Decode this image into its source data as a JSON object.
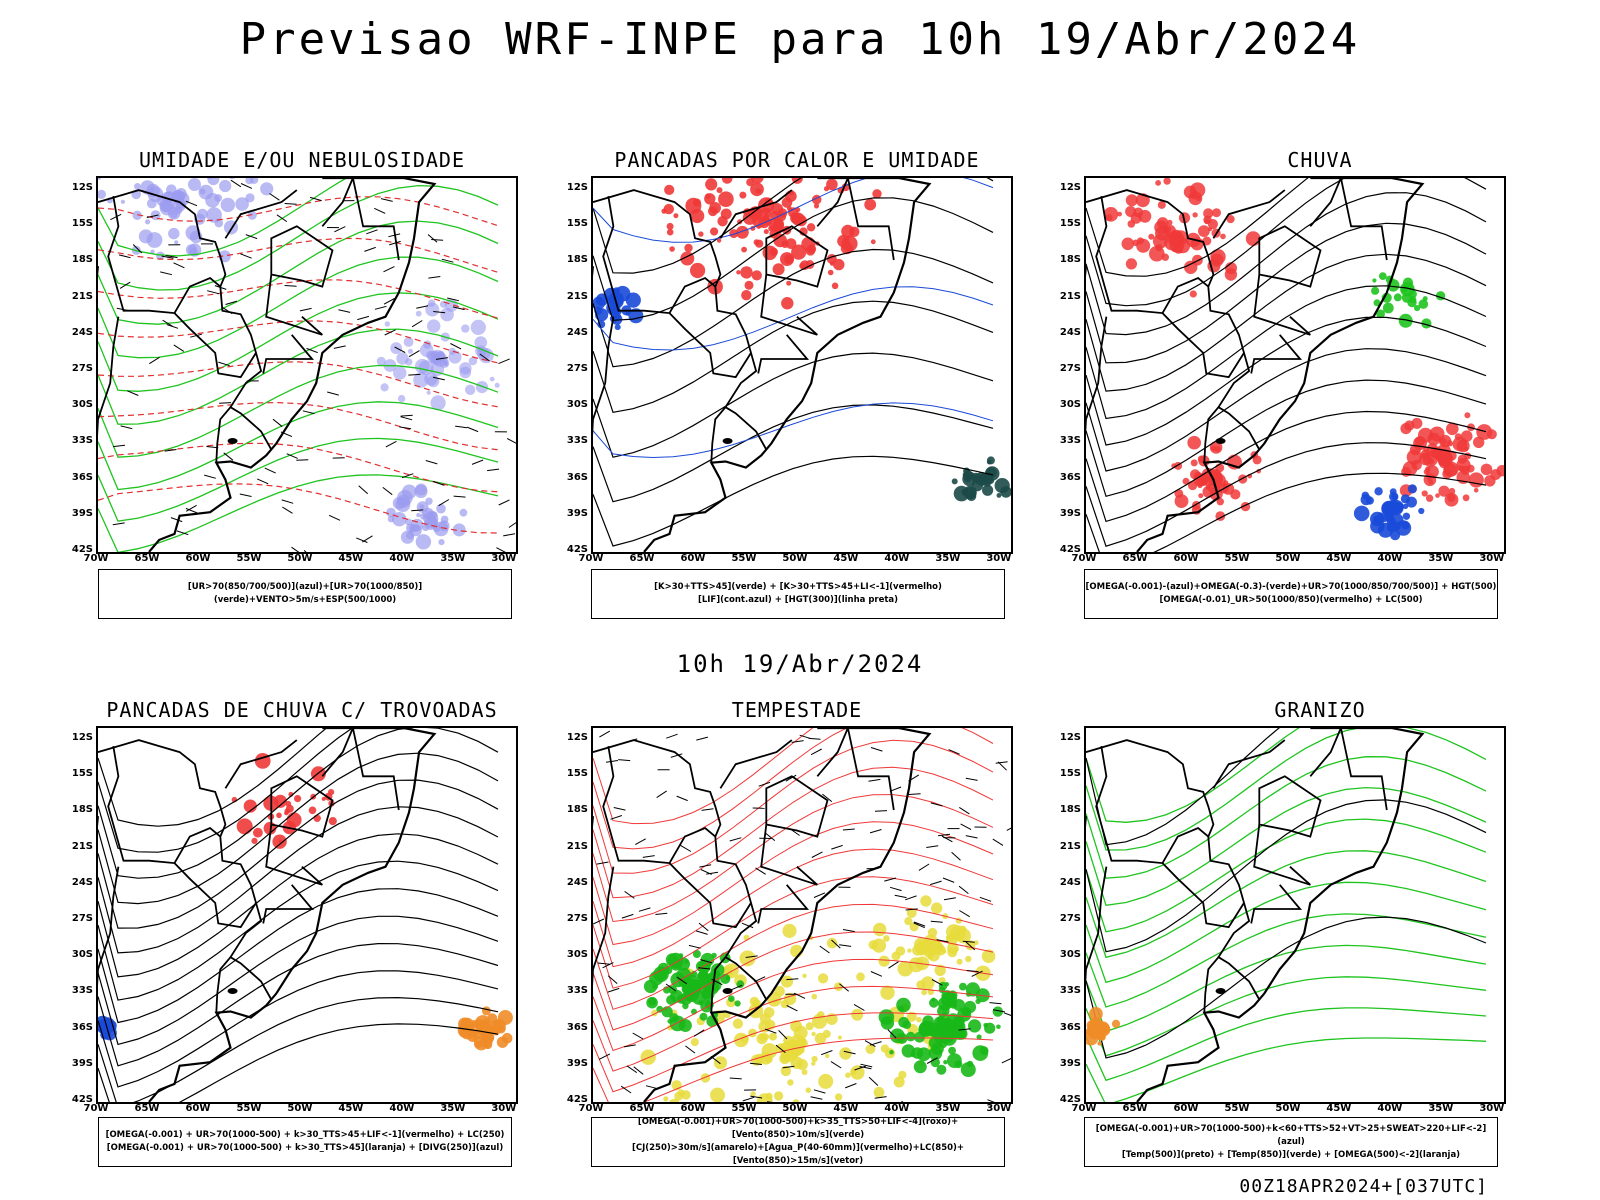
{
  "header": {
    "title": "Previsao WRF-INPE  para 10h 19/Abr/2024"
  },
  "mid_title": "10h 19/Abr/2024",
  "footer": "00Z18APR2024+[037UTC]",
  "lat_labels": [
    "12S",
    "15S",
    "18S",
    "21S",
    "24S",
    "27S",
    "30S",
    "33S",
    "36S",
    "39S",
    "42S"
  ],
  "lon_labels": [
    "70W",
    "65W",
    "60W",
    "55W",
    "50W",
    "45W",
    "40W",
    "35W",
    "30W"
  ],
  "panels": [
    {
      "id": "umidade",
      "title": "UMIDADE E/OU NEBULOSIDADE",
      "legend": [
        "[UR>70(850/700/500)](azul)+[UR>70(1000/850)](verde)+VENTO>5m/s+ESP(500/1000)"
      ],
      "colors": {
        "fill": "#9b9bf0",
        "line": "#1fc41f",
        "dash": "#e03030"
      }
    },
    {
      "id": "pancadas",
      "title": "PANCADAS POR CALOR E UMIDADE",
      "legend": [
        "[K>30+TTS>45](verde) + [K>30+TTS>45+LI<-1](vermelho)",
        "[LIF](cont.azul) + [HGT(300)](linha preta)"
      ],
      "colors": {
        "fill": "#f03838",
        "line": "#1a4ad8",
        "fill2": "#1c4a48"
      }
    },
    {
      "id": "chuva",
      "title": "CHUVA",
      "legend": [
        "[OMEGA(-0.001)-(azul)+OMEGA(-0.3)-(verde)+UR>70(1000/850/700/500)] + HGT(500)",
        "[OMEGA(-0.01)_UR>50(1000/850)(vermelho) + LC(500)"
      ],
      "colors": {
        "fill": "#f03838",
        "line": "#1a4ad8",
        "fill2": "#1fc41f"
      }
    },
    {
      "id": "trovoadas",
      "title": "PANCADAS DE CHUVA C/ TROVOADAS",
      "legend": [
        "[OMEGA(-0.001) + UR>70(1000-500) + k>30_TTS>45+LIF<-1](vermelho) + LC(250)",
        "[OMEGA(-0.001) + UR>70(1000-500) + k>30_TTS>45](laranja) + [DIVG(250)](azul)"
      ],
      "colors": {
        "fill": "#f03838",
        "line": "#1a4ad8",
        "fill2": "#f08c28"
      }
    },
    {
      "id": "tempestade",
      "title": "TEMPESTADE",
      "legend": [
        "[OMEGA(-0.001)+UR>70(1000-500)+k>35_TTS>50+LIF<-4](roxo)+[Vento(850)>10m/s](verde)",
        "[CJ(250)>30m/s](amarelo)+[Agua_P(40-60mm)](vermelho)+LC(850)+[Vento(850)>15m/s](vetor)"
      ],
      "colors": {
        "fill": "#e8dc3c",
        "line": "#f03838",
        "fill2": "#18b818"
      }
    },
    {
      "id": "granizo",
      "title": "GRANIZO",
      "legend": [
        "[OMEGA(-0.001)+UR>70(1000-500)+k<60+TTS>52+VT>25+SWEAT>220+LIF<-2](azul)",
        "[Temp(500)](preto) + [Temp(850)](verde) + [OMEGA(500)<-2](laranja)"
      ],
      "colors": {
        "fill": "#f08c28",
        "line": "#1fc41f",
        "fill2": "#000000"
      }
    }
  ]
}
